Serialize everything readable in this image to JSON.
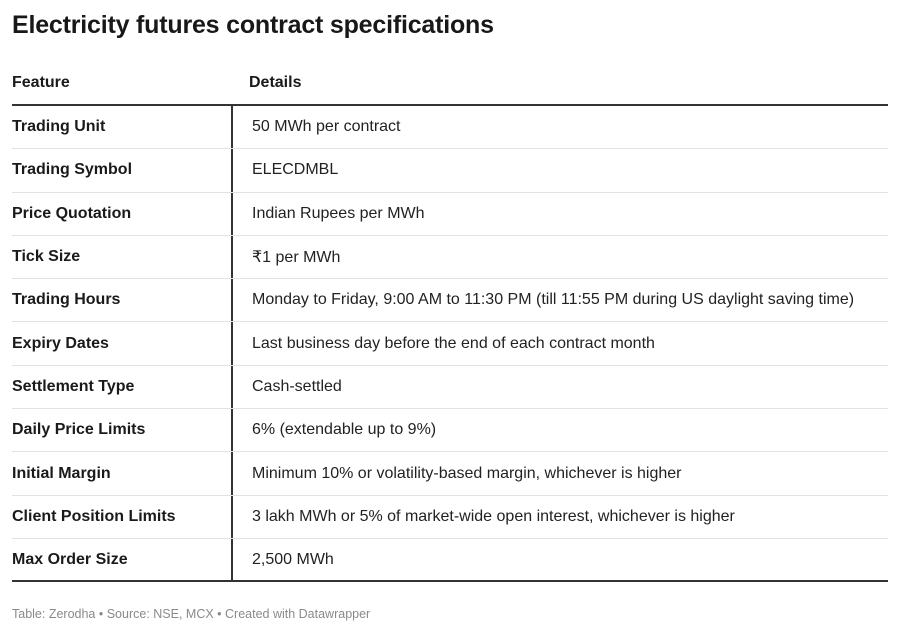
{
  "title": "Electricity futures contract specifications",
  "table": {
    "headers": [
      "Feature",
      "Details"
    ],
    "rows": [
      {
        "feature": "Trading Unit",
        "details": "50 MWh per contract"
      },
      {
        "feature": "Trading Symbol",
        "details": "ELECDMBL"
      },
      {
        "feature": "Price Quotation",
        "details": "Indian Rupees per MWh"
      },
      {
        "feature": "Tick Size",
        "details": "₹1 per MWh"
      },
      {
        "feature": "Trading Hours",
        "details": "Monday to Friday, 9:00 AM to 11:30 PM (till 11:55 PM during US daylight saving time)"
      },
      {
        "feature": "Expiry Dates",
        "details": "Last business day before the end of each contract month"
      },
      {
        "feature": "Settlement Type",
        "details": "Cash-settled"
      },
      {
        "feature": "Daily Price Limits",
        "details": "6% (extendable up to 9%)"
      },
      {
        "feature": "Initial Margin",
        "details": "Minimum 10% or volatility-based margin, whichever is higher"
      },
      {
        "feature": "Client Position Limits",
        "details": "3 lakh MWh or 5% of market-wide open interest, whichever is higher"
      },
      {
        "feature": "Max Order Size",
        "details": "2,500 MWh"
      }
    ]
  },
  "footer": "Table: Zerodha • Source: NSE, MCX • Created with Datawrapper"
}
